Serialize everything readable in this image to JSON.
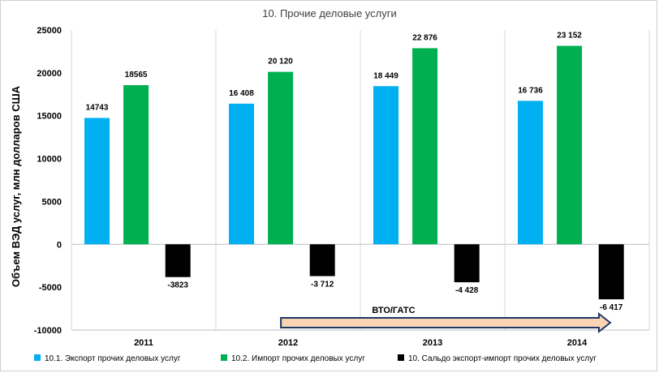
{
  "chart_data": {
    "type": "bar",
    "title": "10. Прочие деловые услуги",
    "ylabel": "Объем ВЭД услуг, млн долларов  США",
    "xlabel": "",
    "categories": [
      "2011",
      "2012",
      "2013",
      "2014"
    ],
    "ylim": [
      -10000,
      25000
    ],
    "yticks": [
      25000,
      20000,
      15000,
      10000,
      5000,
      0,
      -5000,
      -10000
    ],
    "ytick_labels": [
      "25000",
      "20000",
      "15000",
      "10000",
      "5000",
      "0",
      "-5000",
      "-10000"
    ],
    "grid": "vertical category separators",
    "legend_position": "bottom",
    "series": [
      {
        "name": "10.1. Экспорт прочих деловых услуг",
        "color": "#00b0f0",
        "values": [
          14743,
          16408,
          18449,
          16736
        ],
        "labels": [
          "14743",
          "16 408",
          "18 449",
          "16 736"
        ]
      },
      {
        "name": "10.2. Импорт прочих деловых услуг",
        "color": "#00b050",
        "values": [
          18565,
          20120,
          22876,
          23152
        ],
        "labels": [
          "18565",
          "20 120",
          "22 876",
          "23 152"
        ]
      },
      {
        "name": "10. Сальдо экспорт-импорт прочих деловых услуг",
        "color": "#000000",
        "values": [
          -3823,
          -3712,
          -4428,
          -6417
        ],
        "labels": [
          "-3823",
          "-3 712",
          "-4 428",
          "-6 417"
        ]
      }
    ],
    "annotation": {
      "text": "ВТО/ГАТС",
      "shape": "right-arrow",
      "start_category": "2012",
      "end_category": "2014",
      "color": "#fbd4b4"
    }
  }
}
